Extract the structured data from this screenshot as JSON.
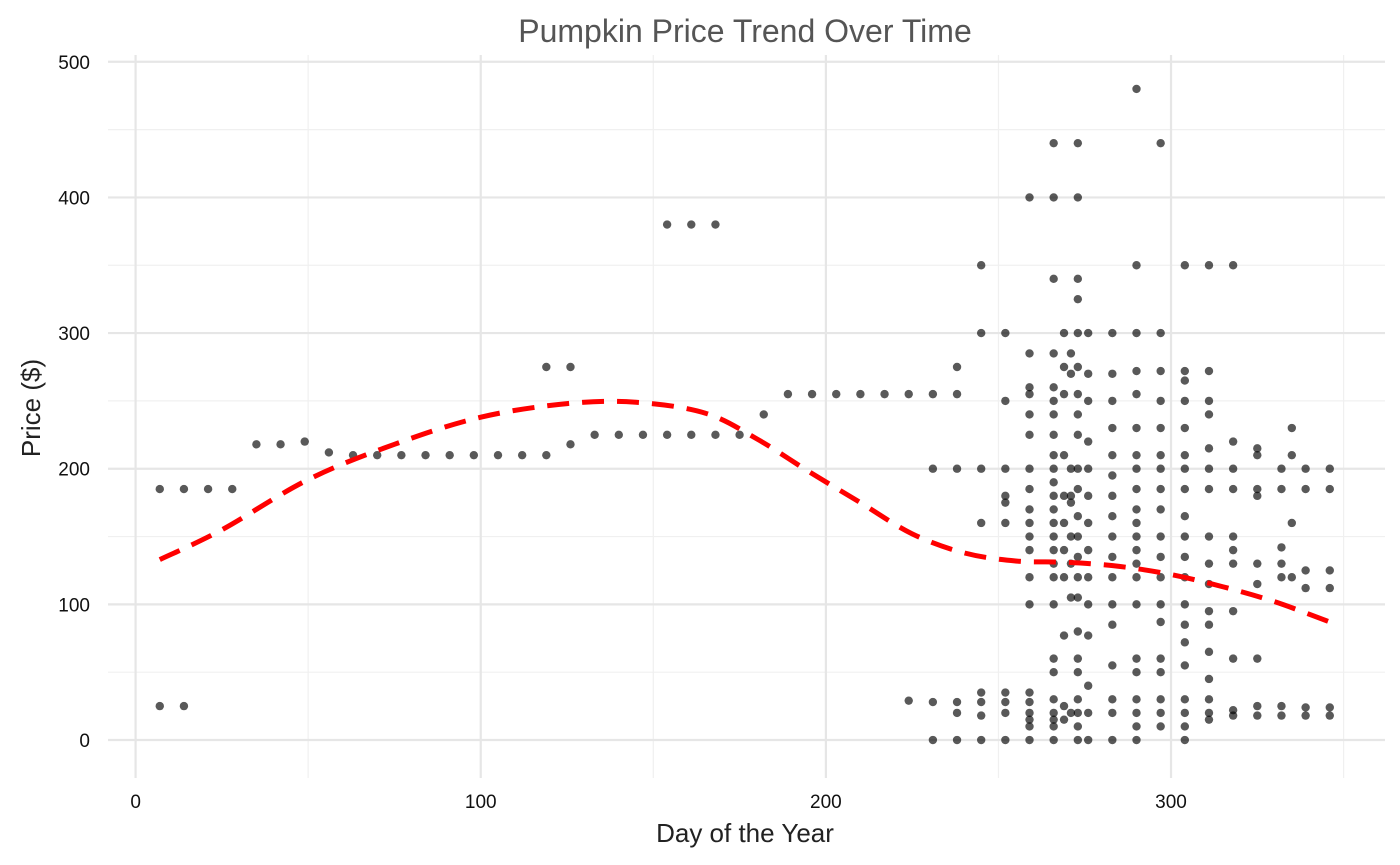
{
  "chart_data": {
    "type": "scatter",
    "title": "Pumpkin Price Trend Over Time",
    "xlabel": "Day of the Year",
    "ylabel": "Price ($)",
    "xlim": [
      -8,
      362
    ],
    "ylim": [
      -28,
      505
    ],
    "x_ticks": [
      0,
      100,
      200,
      300
    ],
    "y_ticks": [
      0,
      100,
      200,
      300,
      400,
      500
    ],
    "x_tick_labels": [
      "0",
      "100",
      "200",
      "300"
    ],
    "y_tick_labels": [
      "0",
      "100",
      "200",
      "300",
      "400",
      "500"
    ],
    "grid": true,
    "point_color": "#000000",
    "point_opacity": 0.65,
    "trend_color": "#ff0000",
    "points": [
      [
        7,
        185
      ],
      [
        7,
        25
      ],
      [
        14,
        185
      ],
      [
        14,
        25
      ],
      [
        21,
        185
      ],
      [
        28,
        185
      ],
      [
        35,
        218
      ],
      [
        42,
        218
      ],
      [
        49,
        220
      ],
      [
        56,
        212
      ],
      [
        63,
        210
      ],
      [
        70,
        210
      ],
      [
        77,
        210
      ],
      [
        84,
        210
      ],
      [
        91,
        210
      ],
      [
        98,
        210
      ],
      [
        105,
        210
      ],
      [
        112,
        210
      ],
      [
        119,
        210
      ],
      [
        119,
        275
      ],
      [
        126,
        275
      ],
      [
        126,
        218
      ],
      [
        133,
        225
      ],
      [
        140,
        225
      ],
      [
        147,
        225
      ],
      [
        154,
        225
      ],
      [
        154,
        380
      ],
      [
        161,
        225
      ],
      [
        161,
        380
      ],
      [
        168,
        225
      ],
      [
        168,
        380
      ],
      [
        175,
        225
      ],
      [
        182,
        240
      ],
      [
        189,
        255
      ],
      [
        196,
        255
      ],
      [
        203,
        255
      ],
      [
        210,
        255
      ],
      [
        217,
        255
      ],
      [
        224,
        255
      ],
      [
        224,
        29
      ],
      [
        231,
        255
      ],
      [
        231,
        200
      ],
      [
        231,
        28
      ],
      [
        231,
        0
      ],
      [
        238,
        275
      ],
      [
        238,
        255
      ],
      [
        238,
        200
      ],
      [
        238,
        28
      ],
      [
        238,
        20
      ],
      [
        238,
        0
      ],
      [
        245,
        350
      ],
      [
        245,
        300
      ],
      [
        245,
        200
      ],
      [
        245,
        160
      ],
      [
        245,
        35
      ],
      [
        245,
        28
      ],
      [
        245,
        18
      ],
      [
        245,
        0
      ],
      [
        252,
        300
      ],
      [
        252,
        250
      ],
      [
        252,
        200
      ],
      [
        252,
        180
      ],
      [
        252,
        175
      ],
      [
        252,
        160
      ],
      [
        252,
        35
      ],
      [
        252,
        28
      ],
      [
        252,
        20
      ],
      [
        252,
        0
      ],
      [
        259,
        400
      ],
      [
        259,
        285
      ],
      [
        259,
        260
      ],
      [
        259,
        255
      ],
      [
        259,
        240
      ],
      [
        259,
        225
      ],
      [
        259,
        200
      ],
      [
        259,
        185
      ],
      [
        259,
        170
      ],
      [
        259,
        160
      ],
      [
        259,
        150
      ],
      [
        259,
        140
      ],
      [
        259,
        120
      ],
      [
        259,
        100
      ],
      [
        259,
        35
      ],
      [
        259,
        28
      ],
      [
        259,
        20
      ],
      [
        259,
        15
      ],
      [
        259,
        10
      ],
      [
        259,
        0
      ],
      [
        266,
        440
      ],
      [
        266,
        400
      ],
      [
        266,
        340
      ],
      [
        266,
        285
      ],
      [
        266,
        260
      ],
      [
        266,
        250
      ],
      [
        266,
        240
      ],
      [
        266,
        225
      ],
      [
        266,
        210
      ],
      [
        266,
        200
      ],
      [
        266,
        190
      ],
      [
        266,
        180
      ],
      [
        266,
        170
      ],
      [
        266,
        160
      ],
      [
        266,
        150
      ],
      [
        266,
        140
      ],
      [
        266,
        130
      ],
      [
        266,
        120
      ],
      [
        266,
        100
      ],
      [
        266,
        60
      ],
      [
        266,
        50
      ],
      [
        266,
        30
      ],
      [
        266,
        20
      ],
      [
        266,
        15
      ],
      [
        266,
        10
      ],
      [
        266,
        0
      ],
      [
        269,
        300
      ],
      [
        269,
        275
      ],
      [
        269,
        255
      ],
      [
        269,
        210
      ],
      [
        269,
        180
      ],
      [
        269,
        160
      ],
      [
        269,
        140
      ],
      [
        269,
        120
      ],
      [
        269,
        77
      ],
      [
        269,
        25
      ],
      [
        269,
        15
      ],
      [
        271,
        285
      ],
      [
        271,
        270
      ],
      [
        271,
        200
      ],
      [
        271,
        180
      ],
      [
        271,
        175
      ],
      [
        271,
        150
      ],
      [
        271,
        130
      ],
      [
        271,
        105
      ],
      [
        271,
        20
      ],
      [
        273,
        440
      ],
      [
        273,
        400
      ],
      [
        273,
        340
      ],
      [
        273,
        325
      ],
      [
        273,
        300
      ],
      [
        273,
        275
      ],
      [
        273,
        255
      ],
      [
        273,
        240
      ],
      [
        273,
        225
      ],
      [
        273,
        200
      ],
      [
        273,
        185
      ],
      [
        273,
        165
      ],
      [
        273,
        150
      ],
      [
        273,
        135
      ],
      [
        273,
        120
      ],
      [
        273,
        105
      ],
      [
        273,
        80
      ],
      [
        273,
        60
      ],
      [
        273,
        50
      ],
      [
        273,
        30
      ],
      [
        273,
        20
      ],
      [
        273,
        10
      ],
      [
        273,
        0
      ],
      [
        276,
        300
      ],
      [
        276,
        270
      ],
      [
        276,
        250
      ],
      [
        276,
        220
      ],
      [
        276,
        200
      ],
      [
        276,
        180
      ],
      [
        276,
        160
      ],
      [
        276,
        140
      ],
      [
        276,
        120
      ],
      [
        276,
        100
      ],
      [
        276,
        77
      ],
      [
        276,
        40
      ],
      [
        276,
        20
      ],
      [
        276,
        0
      ],
      [
        283,
        300
      ],
      [
        283,
        270
      ],
      [
        283,
        250
      ],
      [
        283,
        230
      ],
      [
        283,
        210
      ],
      [
        283,
        195
      ],
      [
        283,
        180
      ],
      [
        283,
        165
      ],
      [
        283,
        150
      ],
      [
        283,
        135
      ],
      [
        283,
        120
      ],
      [
        283,
        100
      ],
      [
        283,
        85
      ],
      [
        283,
        55
      ],
      [
        283,
        30
      ],
      [
        283,
        20
      ],
      [
        283,
        0
      ],
      [
        290,
        480
      ],
      [
        290,
        350
      ],
      [
        290,
        300
      ],
      [
        290,
        272
      ],
      [
        290,
        255
      ],
      [
        290,
        230
      ],
      [
        290,
        210
      ],
      [
        290,
        200
      ],
      [
        290,
        185
      ],
      [
        290,
        170
      ],
      [
        290,
        160
      ],
      [
        290,
        150
      ],
      [
        290,
        140
      ],
      [
        290,
        130
      ],
      [
        290,
        120
      ],
      [
        290,
        100
      ],
      [
        290,
        60
      ],
      [
        290,
        50
      ],
      [
        290,
        30
      ],
      [
        290,
        20
      ],
      [
        290,
        10
      ],
      [
        290,
        0
      ],
      [
        297,
        440
      ],
      [
        297,
        300
      ],
      [
        297,
        272
      ],
      [
        297,
        250
      ],
      [
        297,
        230
      ],
      [
        297,
        210
      ],
      [
        297,
        200
      ],
      [
        297,
        185
      ],
      [
        297,
        170
      ],
      [
        297,
        150
      ],
      [
        297,
        135
      ],
      [
        297,
        120
      ],
      [
        297,
        100
      ],
      [
        297,
        87
      ],
      [
        297,
        60
      ],
      [
        297,
        50
      ],
      [
        297,
        30
      ],
      [
        297,
        20
      ],
      [
        297,
        10
      ],
      [
        304,
        350
      ],
      [
        304,
        272
      ],
      [
        304,
        265
      ],
      [
        304,
        250
      ],
      [
        304,
        230
      ],
      [
        304,
        210
      ],
      [
        304,
        200
      ],
      [
        304,
        185
      ],
      [
        304,
        165
      ],
      [
        304,
        150
      ],
      [
        304,
        135
      ],
      [
        304,
        120
      ],
      [
        304,
        100
      ],
      [
        304,
        85
      ],
      [
        304,
        72
      ],
      [
        304,
        55
      ],
      [
        304,
        30
      ],
      [
        304,
        20
      ],
      [
        304,
        10
      ],
      [
        304,
        0
      ],
      [
        311,
        350
      ],
      [
        311,
        272
      ],
      [
        311,
        250
      ],
      [
        311,
        240
      ],
      [
        311,
        215
      ],
      [
        311,
        200
      ],
      [
        311,
        185
      ],
      [
        311,
        150
      ],
      [
        311,
        130
      ],
      [
        311,
        115
      ],
      [
        311,
        95
      ],
      [
        311,
        85
      ],
      [
        311,
        65
      ],
      [
        311,
        45
      ],
      [
        311,
        30
      ],
      [
        311,
        20
      ],
      [
        311,
        15
      ],
      [
        318,
        350
      ],
      [
        318,
        220
      ],
      [
        318,
        200
      ],
      [
        318,
        185
      ],
      [
        318,
        150
      ],
      [
        318,
        140
      ],
      [
        318,
        130
      ],
      [
        318,
        95
      ],
      [
        318,
        60
      ],
      [
        318,
        22
      ],
      [
        318,
        18
      ],
      [
        325,
        215
      ],
      [
        325,
        210
      ],
      [
        325,
        185
      ],
      [
        325,
        180
      ],
      [
        325,
        130
      ],
      [
        325,
        115
      ],
      [
        325,
        60
      ],
      [
        325,
        25
      ],
      [
        325,
        18
      ],
      [
        332,
        200
      ],
      [
        332,
        185
      ],
      [
        332,
        142
      ],
      [
        332,
        130
      ],
      [
        332,
        120
      ],
      [
        332,
        25
      ],
      [
        332,
        18
      ],
      [
        335,
        230
      ],
      [
        335,
        210
      ],
      [
        335,
        160
      ],
      [
        335,
        120
      ],
      [
        339,
        200
      ],
      [
        339,
        185
      ],
      [
        339,
        125
      ],
      [
        339,
        112
      ],
      [
        339,
        24
      ],
      [
        339,
        18
      ],
      [
        346,
        200
      ],
      [
        346,
        185
      ],
      [
        346,
        125
      ],
      [
        346,
        112
      ],
      [
        346,
        24
      ],
      [
        346,
        18
      ]
    ],
    "trend": [
      [
        7,
        133
      ],
      [
        25,
        155
      ],
      [
        50,
        192
      ],
      [
        75,
        218
      ],
      [
        100,
        238
      ],
      [
        125,
        248
      ],
      [
        145,
        249
      ],
      [
        165,
        241
      ],
      [
        180,
        222
      ],
      [
        195,
        198
      ],
      [
        210,
        175
      ],
      [
        225,
        152
      ],
      [
        240,
        138
      ],
      [
        255,
        132
      ],
      [
        270,
        131
      ],
      [
        285,
        128
      ],
      [
        300,
        122
      ],
      [
        315,
        113
      ],
      [
        330,
        102
      ],
      [
        346,
        87
      ]
    ]
  }
}
